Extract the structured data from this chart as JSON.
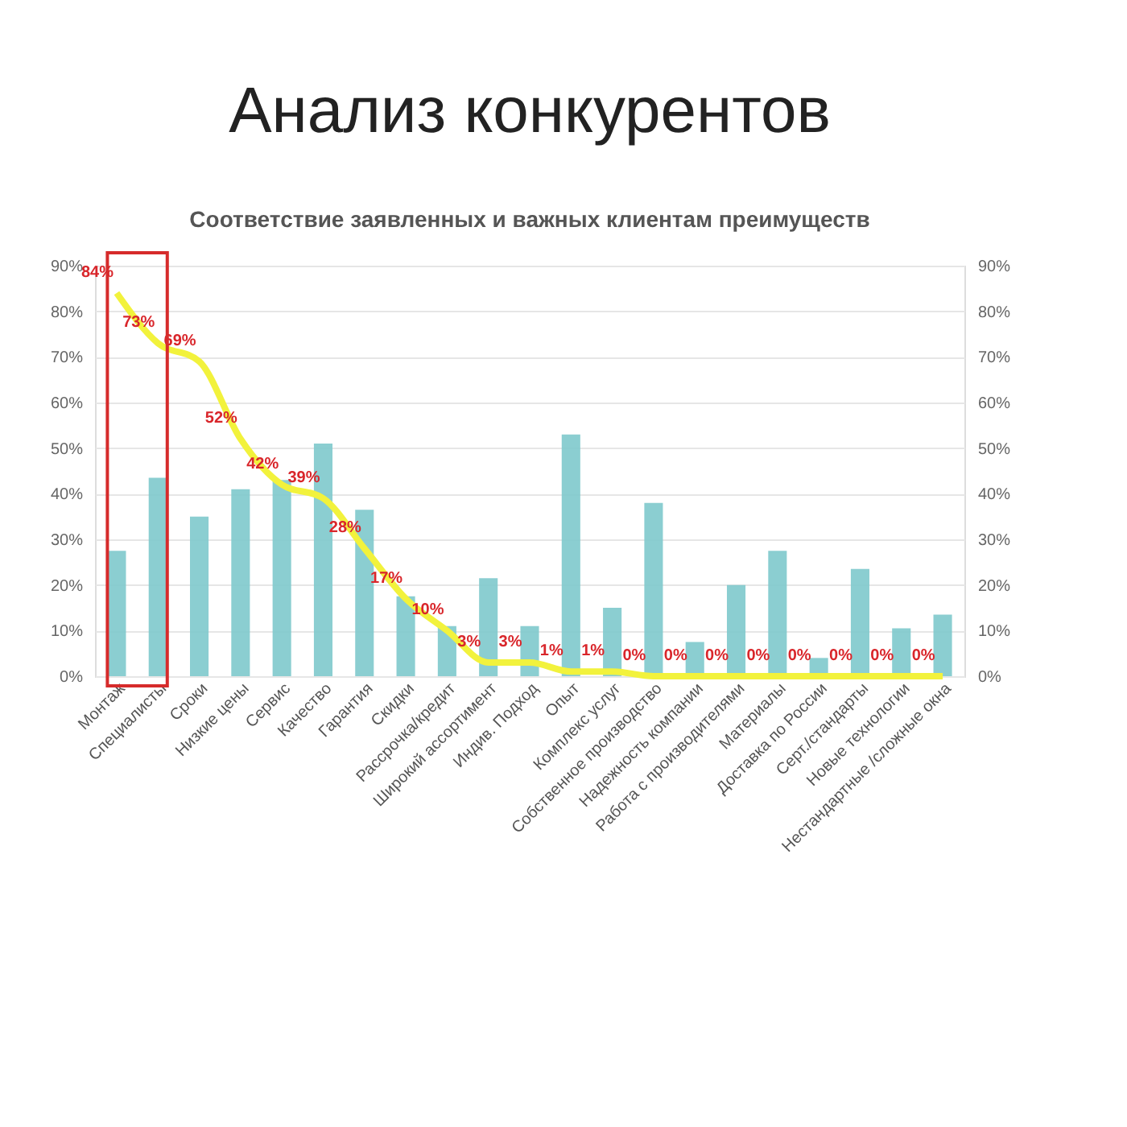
{
  "chart_data": {
    "type": "bar",
    "title": "Анализ конкурентов",
    "subtitle": "Соответствие заявленных и важных клиентам преимуществ",
    "categories": [
      "Монтаж",
      "Специалисты",
      "Сроки",
      "Низкие цены",
      "Сервис",
      "Качество",
      "Гарантия",
      "Скидки",
      "Рассрочка/кредит",
      "Широкий ассортимент",
      "Индив. Подход",
      "Опыт",
      "Комплекс услуг",
      "Собственное производство",
      "Надежность компании",
      "Работа с производителями",
      "Материалы",
      "Доставка по России",
      "Серт./стандарты",
      "Новые технологии",
      "Нестандартные /сложные окна"
    ],
    "series": [
      {
        "color": "#7ec9cc",
        "values": [
          27.5,
          43.5,
          35,
          41,
          43,
          51,
          36.5,
          17.5,
          11,
          21.5,
          11,
          53,
          15,
          38,
          7.5,
          20,
          27.5,
          4,
          23.5,
          10.5,
          13.5
        ]
      },
      {
        "type": "line",
        "axis": "y2",
        "color": "#f2f23c",
        "values": [
          84,
          73,
          69,
          52,
          42,
          39,
          28,
          17,
          10,
          3,
          3,
          1,
          1,
          0,
          0,
          0,
          0,
          0,
          0,
          0,
          0
        ],
        "value_labels": [
          "84%",
          "73%",
          "69%",
          "52%",
          "42%",
          "39%",
          "28%",
          "17%",
          "10%",
          "3%",
          "3%",
          "1%",
          "1%",
          "0%",
          "0%",
          "0%",
          "0%",
          "0%",
          "0%",
          "0%",
          "0%"
        ]
      }
    ],
    "ylim": [
      0,
      90
    ],
    "yticks": [
      {
        "value": 0,
        "label": "0%"
      },
      {
        "value": 10,
        "label": "10%"
      },
      {
        "value": 20,
        "label": "20%"
      },
      {
        "value": 30,
        "label": "30%"
      },
      {
        "value": 40,
        "label": "40%"
      },
      {
        "value": 50,
        "label": "50%"
      },
      {
        "value": 60,
        "label": "60%"
      },
      {
        "value": 70,
        "label": "70%"
      },
      {
        "value": 80,
        "label": "80%"
      },
      {
        "value": 90,
        "label": "90%"
      }
    ],
    "y2lim": [
      0,
      90
    ],
    "y2ticks": [
      {
        "value": 0,
        "label": "0%"
      },
      {
        "value": 10,
        "label": "10%"
      },
      {
        "value": 20,
        "label": "20%"
      },
      {
        "value": 30,
        "label": "30%"
      },
      {
        "value": 40,
        "label": "40%"
      },
      {
        "value": 50,
        "label": "50%"
      },
      {
        "value": 60,
        "label": "60%"
      },
      {
        "value": 70,
        "label": "70%"
      },
      {
        "value": 80,
        "label": "80%"
      },
      {
        "value": 90,
        "label": "90%"
      }
    ],
    "grid": "y",
    "marker": "none",
    "line_style": "solid"
  }
}
